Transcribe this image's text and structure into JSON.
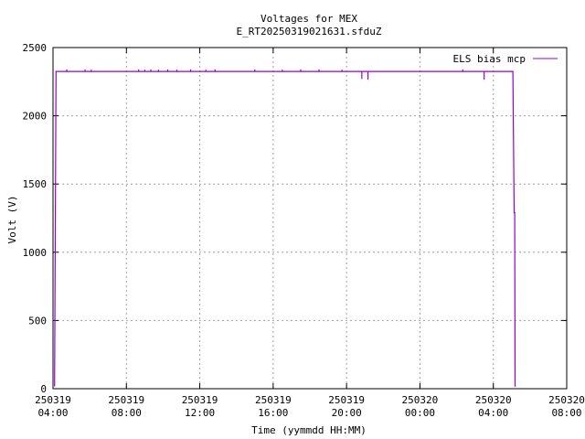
{
  "chart_data": {
    "type": "line",
    "title": "Voltages for MEX",
    "subtitle": "E_RT20250319021631.sfduZ",
    "xlabel": "Time (yymmdd HH:MM)",
    "ylabel": "Volt (V)",
    "xlim": [
      "2025-03-19 04:00",
      "2025-03-20 08:00"
    ],
    "ylim": [
      0,
      2500
    ],
    "grid": true,
    "legend_position": "top-right",
    "x_ticks": [
      {
        "date": "250319",
        "time": "04:00"
      },
      {
        "date": "250319",
        "time": "08:00"
      },
      {
        "date": "250319",
        "time": "12:00"
      },
      {
        "date": "250319",
        "time": "16:00"
      },
      {
        "date": "250319",
        "time": "20:00"
      },
      {
        "date": "250320",
        "time": "00:00"
      },
      {
        "date": "250320",
        "time": "04:00"
      },
      {
        "date": "250320",
        "time": "08:00"
      }
    ],
    "y_ticks": [
      "0",
      "500",
      "1000",
      "1500",
      "2000",
      "2500"
    ],
    "series": [
      {
        "name": "ELS bias mcp",
        "color": "#9400d3",
        "x": [
          "2025-03-19 04:05",
          "2025-03-19 04:10",
          "2025-03-20 05:00",
          "2025-03-20 05:04",
          "2025-03-20 05:08",
          "2025-03-20 05:10",
          "2025-03-20 05:11",
          "2025-03-20 05:12"
        ],
        "y": [
          20,
          2325,
          2325,
          2325,
          1290,
          1290,
          20,
          20
        ]
      }
    ],
    "spikes": {
      "x": [
        "2025-03-19 04:45",
        "2025-03-19 05:45",
        "2025-03-19 06:05",
        "2025-03-19 08:40",
        "2025-03-19 09:00",
        "2025-03-19 09:20",
        "2025-03-19 09:45",
        "2025-03-19 10:15",
        "2025-03-19 10:45",
        "2025-03-19 11:30",
        "2025-03-19 12:20",
        "2025-03-19 12:50",
        "2025-03-19 15:00",
        "2025-03-19 16:30",
        "2025-03-19 17:30",
        "2025-03-19 18:30",
        "2025-03-19 19:45",
        "2025-03-19 20:50",
        "2025-03-19 21:10",
        "2025-03-20 02:20",
        "2025-03-20 03:30"
      ],
      "y": [
        2340,
        2340,
        2338,
        2340,
        2338,
        2340,
        2338,
        2340,
        2338,
        2340,
        2338,
        2340,
        2340,
        2338,
        2340,
        2340,
        2338,
        2270,
        2265,
        2340,
        2265
      ]
    }
  }
}
